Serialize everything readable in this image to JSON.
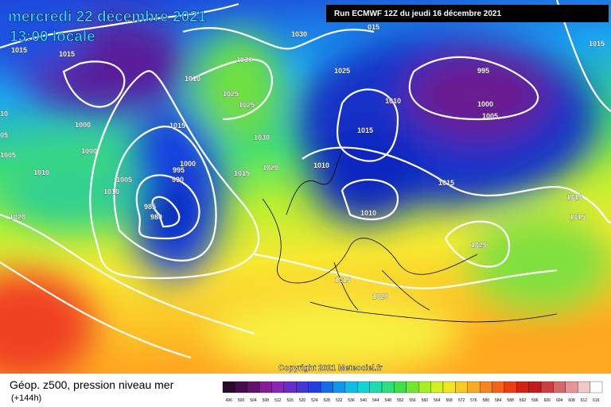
{
  "header": {
    "date": "mercredi 22 décembre 2021",
    "time": "13:00 locale",
    "run": "Run ECMWF 12Z du jeudi 16 décembre 2021"
  },
  "isobar_labels": [
    "1015",
    "1015",
    "1030",
    "015",
    "1030",
    "1010",
    "1025",
    "995",
    "1015",
    "1025",
    "1025",
    "1010",
    "1000",
    "1005",
    "1000",
    "1015",
    "1015",
    "1030",
    "10",
    "05",
    "1000",
    "1005",
    "1000",
    "995",
    "990",
    "1020",
    "1015",
    "1010",
    "1005",
    "1010",
    "1010",
    "1015",
    "985",
    "980",
    "1010",
    "1010",
    "1015",
    "1020",
    "1025",
    "1015",
    "1020"
  ],
  "copyright": "Copyright 2021 Meteociel.fr",
  "footer": {
    "title": "Géop. z500, pression niveau mer",
    "lead": "(+144h)"
  },
  "scale": {
    "labels": [
      "496",
      "500",
      "504",
      "508",
      "512",
      "516",
      "520",
      "524",
      "528",
      "532",
      "536",
      "540",
      "544",
      "548",
      "552",
      "556",
      "560",
      "564",
      "568",
      "572",
      "576",
      "580",
      "584",
      "588",
      "592",
      "596",
      "600",
      "604",
      "608",
      "612",
      "616"
    ]
  }
}
